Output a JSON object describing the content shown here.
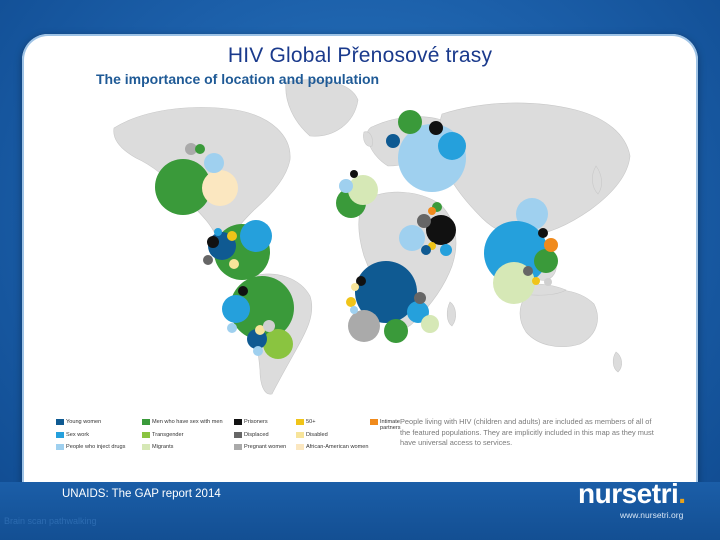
{
  "slide": {
    "title": "HIV Global Přenosové trasy",
    "map_heading": "The importance of location and population",
    "source": "UNAIDS: The GAP report 2014",
    "brand_name": "nursetri",
    "brand_dot": ".",
    "brand_url": "www.nursetri.org",
    "faint_text": "Brain scan pathwalking"
  },
  "legend": {
    "note": "People living with HIV (children and adults) are included as members of all of the featured populations. They are implicitly included in this map as they must have universal access to services.",
    "items": [
      {
        "label": "Young women",
        "color": "#0f5a92"
      },
      {
        "label": "Sex work",
        "color": "#25a0dc"
      },
      {
        "label": "People who inject drugs",
        "color": "#9fd0ef"
      },
      {
        "label": "Men who have sex with men",
        "color": "#3a9a3a"
      },
      {
        "label": "Transgender",
        "color": "#8ac440"
      },
      {
        "label": "Migrants",
        "color": "#d6e8b6"
      },
      {
        "label": "Prisoners",
        "color": "#111111"
      },
      {
        "label": "Displaced",
        "color": "#666666"
      },
      {
        "label": "Pregnant women",
        "color": "#aaaaaa"
      },
      {
        "label": "50+",
        "color": "#f0c419"
      },
      {
        "label": "Disabled",
        "color": "#f7e49a"
      },
      {
        "label": "African-American women",
        "color": "#fbe7c0"
      },
      {
        "label": "Intimate partners",
        "color": "#f08a1c"
      }
    ]
  },
  "map": {
    "continent_color": "#dcdcdc",
    "ocean_color": "#ffffff"
  }
}
